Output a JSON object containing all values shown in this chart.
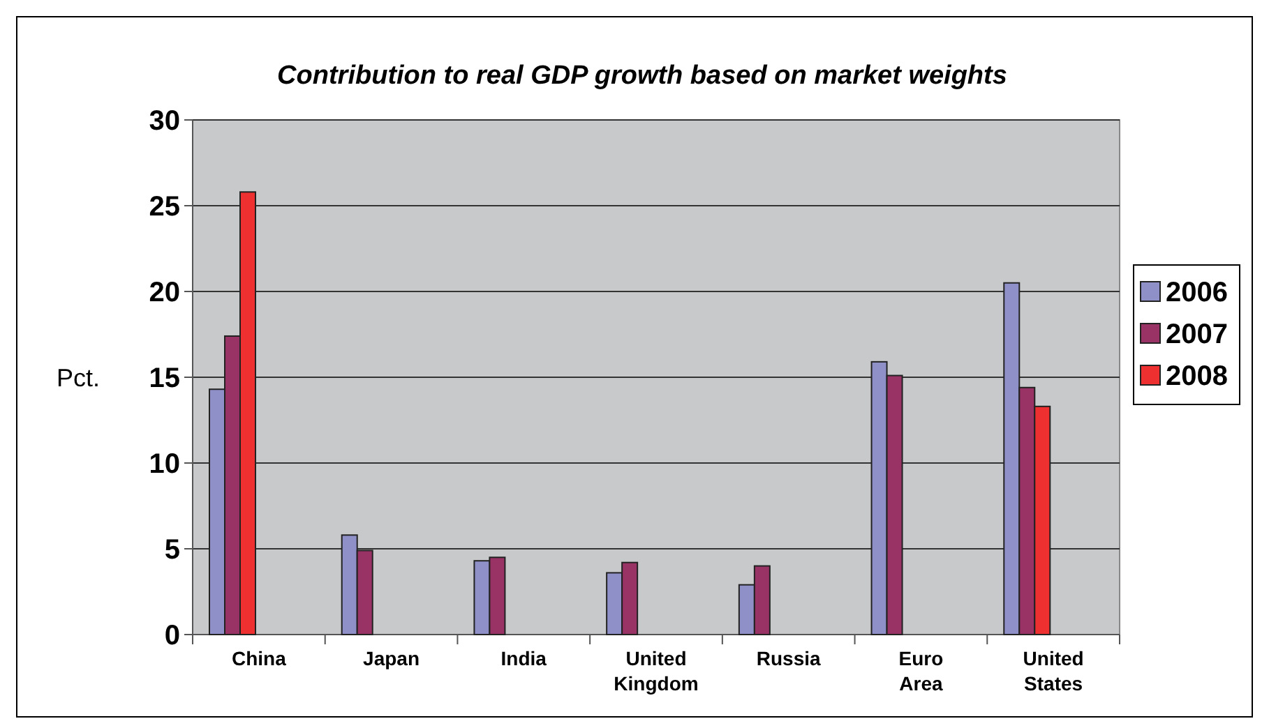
{
  "chart_data": {
    "type": "bar",
    "title": "Contribution to real GDP growth based on market weights",
    "ylabel": "Pct.",
    "categories": [
      "China",
      "Japan",
      "India",
      "United Kingdom",
      "Russia",
      "Euro Area",
      "United States"
    ],
    "series": [
      {
        "name": "2006",
        "color": "#9090c8",
        "values": [
          14.3,
          5.8,
          4.3,
          3.6,
          2.9,
          15.9,
          20.5
        ]
      },
      {
        "name": "2007",
        "color": "#993366",
        "values": [
          17.4,
          4.9,
          4.5,
          4.2,
          4.0,
          15.1,
          14.4
        ]
      },
      {
        "name": "2008",
        "color": "#ee3030",
        "values": [
          25.8,
          null,
          null,
          null,
          null,
          null,
          13.3
        ]
      }
    ],
    "ylim": [
      0,
      30
    ],
    "yticks": [
      0,
      5,
      10,
      15,
      20,
      25,
      30
    ],
    "grid": "y",
    "legend": "right"
  }
}
